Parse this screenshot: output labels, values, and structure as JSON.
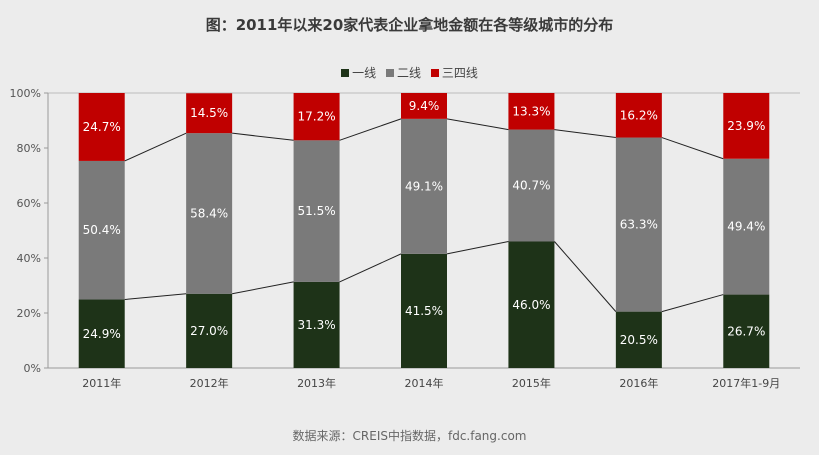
{
  "title": "图：2011年以来20家代表企业拿地金额在各等级城市的分布",
  "source": "数据来源：CREIS中指数据，fdc.fang.com",
  "chart_data": {
    "type": "bar",
    "stacked": true,
    "percent": true,
    "categories": [
      "2011年",
      "2012年",
      "2013年",
      "2014年",
      "2015年",
      "2016年",
      "2017年1-9月"
    ],
    "series": [
      {
        "name": "一线",
        "color": "#1e3318",
        "values": [
          24.9,
          27.0,
          31.3,
          41.5,
          46.0,
          20.5,
          26.7
        ],
        "labels": [
          "24.9%",
          "27.0%",
          "31.3%",
          "41.5%",
          "46.0%",
          "20.5%",
          "26.7%"
        ]
      },
      {
        "name": "二线",
        "color": "#7a7a7a",
        "values": [
          50.4,
          58.4,
          51.5,
          49.1,
          40.7,
          63.3,
          49.4
        ],
        "labels": [
          "50.4%",
          "58.4%",
          "51.5%",
          "49.1%",
          "40.7%",
          "63.3%",
          "49.4%"
        ]
      },
      {
        "name": "三四线",
        "color": "#c00000",
        "values": [
          24.7,
          14.5,
          17.2,
          9.4,
          13.3,
          16.2,
          23.9
        ],
        "labels": [
          "24.7%",
          "14.5%",
          "17.2%",
          "9.4%",
          "13.3%",
          "16.2%",
          "23.9%"
        ]
      }
    ],
    "y_ticks": [
      "0%",
      "20%",
      "40%",
      "60%",
      "80%",
      "100%"
    ],
    "ylim": [
      0,
      100
    ],
    "legend_position": "top-center",
    "connector_lines": true,
    "grid": false
  }
}
